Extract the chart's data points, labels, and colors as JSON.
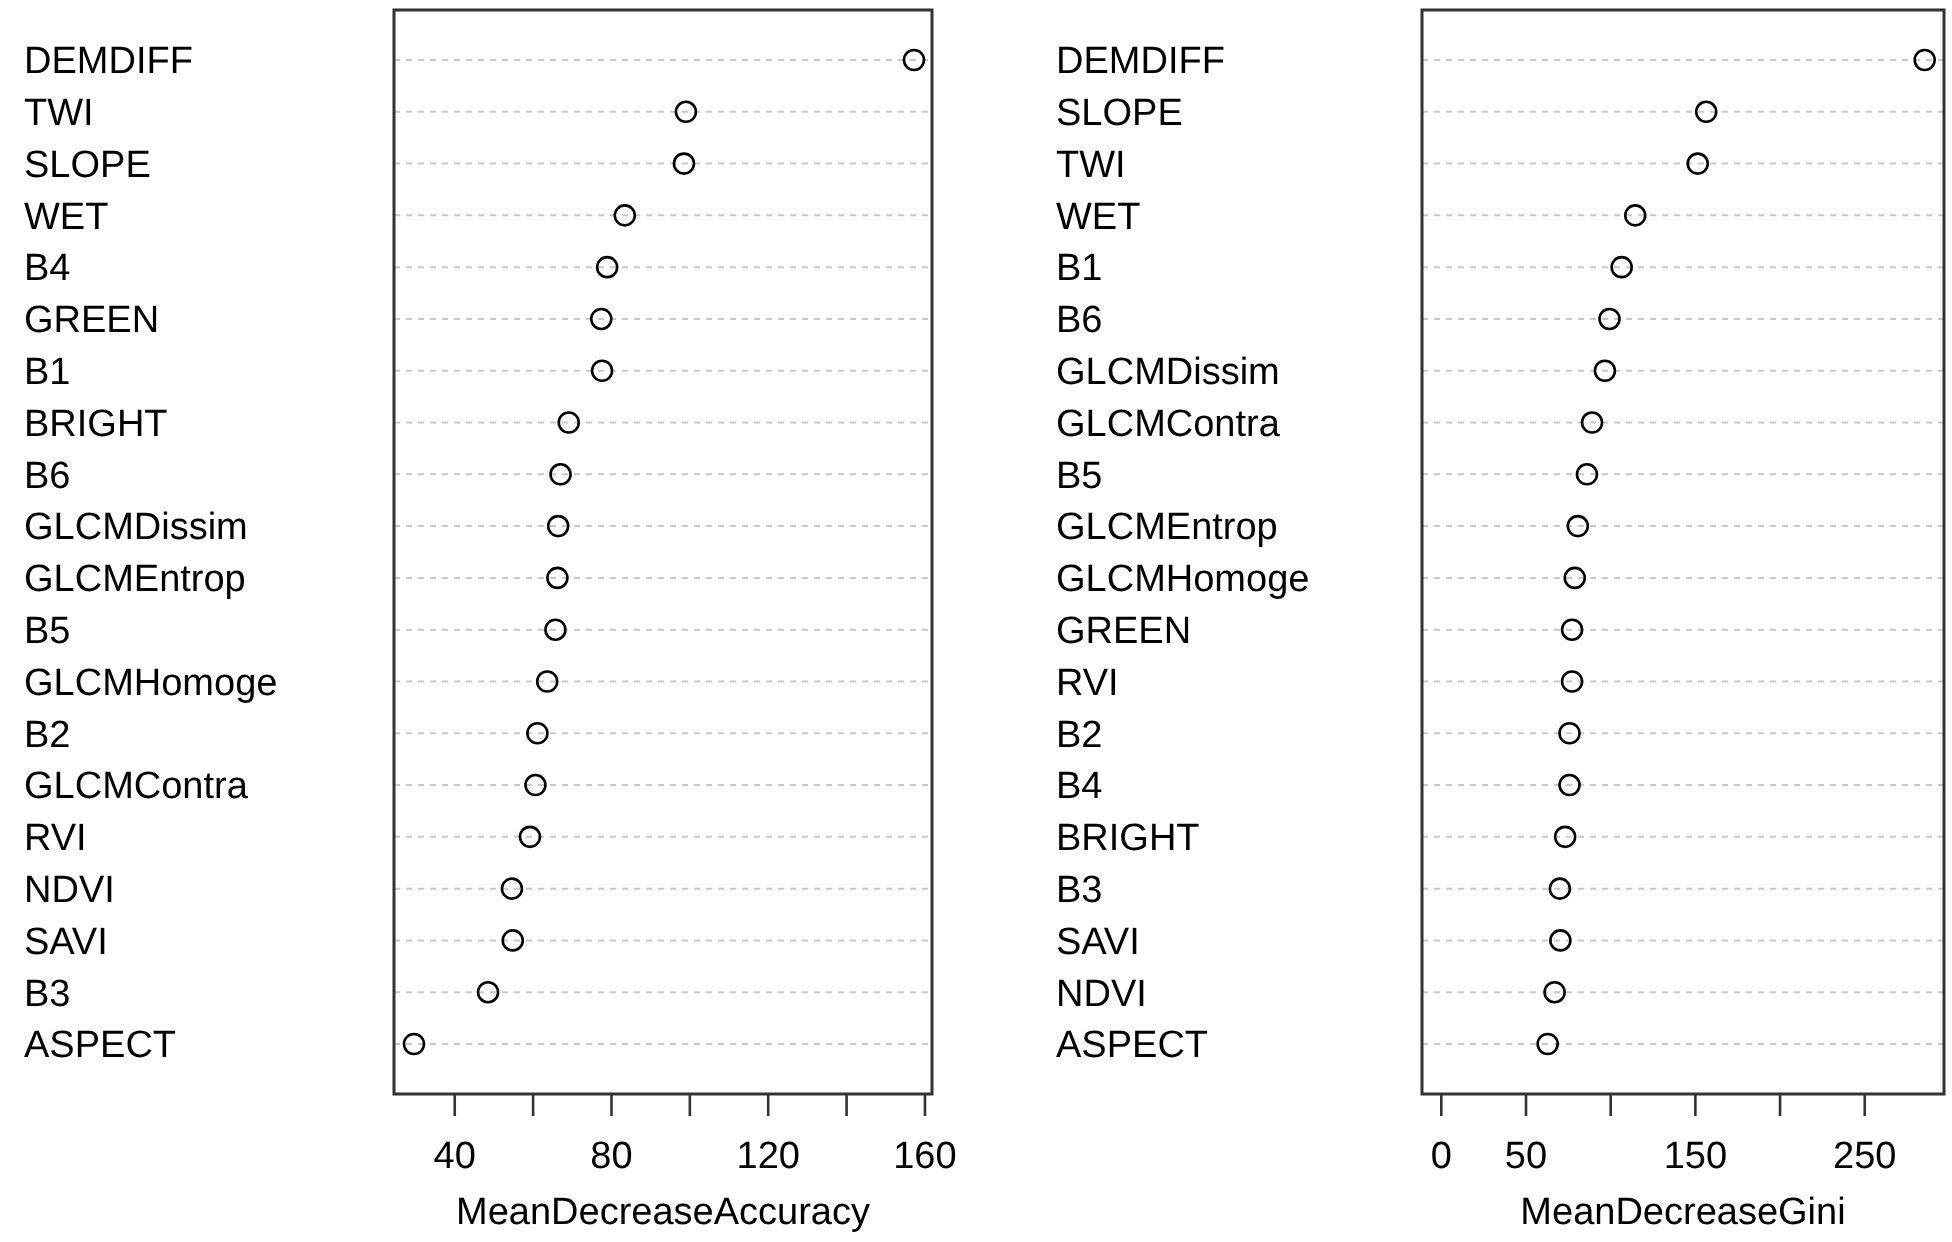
{
  "chart_data": [
    {
      "type": "scatter",
      "orientation": "horizontal",
      "xlabel": "MeanDecreaseAccuracy",
      "categories": [
        "DEMDIFF",
        "TWI",
        "SLOPE",
        "WET",
        "B4",
        "GREEN",
        "B1",
        "BRIGHT",
        "B6",
        "GLCMDissim",
        "GLCMEntrop",
        "B5",
        "GLCMHomoge",
        "B2",
        "GLCMContra",
        "RVI",
        "NDVI",
        "SAVI",
        "B3",
        "ASPECT"
      ],
      "values": [
        157.2,
        99.0,
        98.5,
        83.4,
        78.9,
        77.4,
        77.6,
        69.1,
        67.0,
        66.4,
        66.2,
        65.7,
        63.6,
        61.1,
        60.6,
        59.2,
        54.6,
        54.8,
        48.5,
        29.6
      ],
      "color": "#000000",
      "marker": "circle",
      "grid": "y",
      "xlim": [
        24.5,
        161.8
      ],
      "xticks": [
        40,
        {
          "value": 60,
          "label": null
        },
        80,
        {
          "value": 100,
          "label": null
        },
        120,
        {
          "value": 140,
          "label": null
        },
        160
      ]
    },
    {
      "type": "scatter",
      "orientation": "horizontal",
      "xlabel": "MeanDecreaseGini",
      "categories": [
        "DEMDIFF",
        "SLOPE",
        "TWI",
        "WET",
        "B1",
        "B6",
        "GLCMDissim",
        "GLCMContra",
        "B5",
        "GLCMEntrop",
        "GLCMHomoge",
        "GREEN",
        "RVI",
        "B2",
        "B4",
        "BRIGHT",
        "B3",
        "SAVI",
        "NDVI",
        "ASPECT"
      ],
      "values": [
        285.4,
        156.4,
        151.4,
        114.5,
        106.5,
        99.3,
        96.6,
        89.0,
        86.0,
        80.6,
        78.8,
        77.2,
        77.2,
        75.7,
        75.7,
        73.1,
        70.0,
        70.3,
        66.9,
        62.8
      ],
      "color": "#000000",
      "marker": "circle",
      "grid": "y",
      "xlim": [
        -11.4,
        296.8
      ],
      "xticks": [
        0,
        50,
        {
          "value": 100,
          "label": null
        },
        150,
        {
          "value": 200,
          "label": null
        },
        250
      ]
    }
  ]
}
